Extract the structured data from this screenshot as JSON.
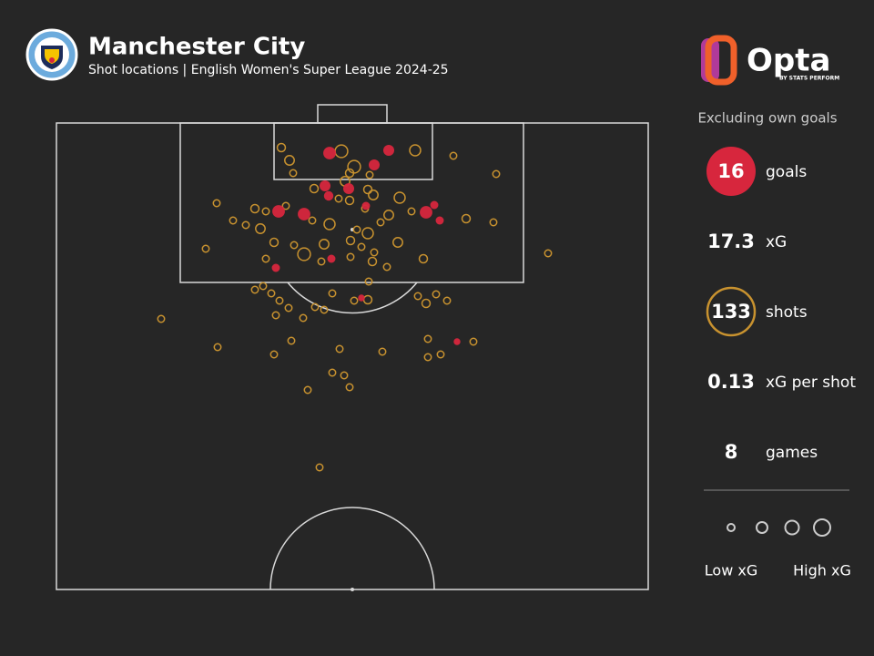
{
  "chart_data": {
    "type": "scatter",
    "title": "Manchester City",
    "subtitle": "Shot locations | English Women's Super League 2024-25",
    "brand": {
      "name": "Opta",
      "tagline": "BY STATS PERFORM"
    },
    "note": "Excluding own goals",
    "xlim": [
      0,
      650
    ],
    "ylim": [
      0,
      512
    ],
    "series": [
      {
        "name": "shots",
        "color": "#c8922f",
        "x": [
          247,
          313,
          394,
          256,
          327,
          322,
          260,
          344,
          436,
          483,
          317,
          283,
          342,
          348,
          377,
          322,
          310,
          176,
          218,
          230,
          252,
          339,
          365,
          390,
          450,
          480,
          194,
          224,
          208,
          281,
          300,
          330,
          342,
          356,
          239,
          272,
          294,
          323,
          335,
          349,
          375,
          164,
          230,
          261,
          403,
          323,
          347,
          363,
          291,
          540,
          218,
          227,
          236,
          245,
          303,
          327,
          342,
          343,
          397,
          406,
          417,
          429,
          284,
          294,
          255,
          241,
          115,
          271,
          408,
          458,
          177,
          258,
          311,
          358,
          239,
          408,
          422,
          303,
          316,
          322,
          276,
          289
        ],
        "values": [
          27,
          31,
          30,
          41,
          48,
          55,
          55,
          57,
          36,
          56,
          64,
          72,
          73,
          79,
          82,
          85,
          83,
          88,
          94,
          97,
          91,
          94,
          101,
          97,
          105,
          109,
          107,
          116,
          112,
          107,
          111,
          117,
          121,
          109,
          131,
          144,
          133,
          129,
          136,
          142,
          131,
          138,
          149,
          134,
          149,
          147,
          152,
          158,
          152,
          143,
          183,
          179,
          187,
          195,
          187,
          195,
          194,
          174,
          190,
          198,
          188,
          195,
          202,
          205,
          203,
          211,
          215,
          214,
          237,
          240,
          246,
          239,
          248,
          251,
          254,
          257,
          254,
          274,
          277,
          290,
          293,
          378
        ],
        "sizes": [
          0.08,
          0.4,
          0.25,
          0.15,
          0.4,
          0.08,
          0.03,
          0.03,
          0.03,
          0.03,
          0.15,
          0.08,
          0.08,
          0.15,
          0.25,
          0.08,
          0.03,
          0.03,
          0.08,
          0.03,
          0.03,
          0.03,
          0.15,
          0.03,
          0.08,
          0.03,
          0.03,
          0.15,
          0.03,
          0.03,
          0.25,
          0.03,
          0.25,
          0.03,
          0.08,
          0.4,
          0.15,
          0.08,
          0.03,
          0.03,
          0.15,
          0.03,
          0.03,
          0.03,
          0.08,
          0.03,
          0.08,
          0.03,
          0.03,
          0.03,
          0.03,
          0.03,
          0.03,
          0.03,
          0.03,
          0.03,
          0.08,
          0.03,
          0.03,
          0.08,
          0.03,
          0.03,
          0.03,
          0.03,
          0.03,
          0.03,
          0.03,
          0.03,
          0.03,
          0.03,
          0.03,
          0.03,
          0.03,
          0.03,
          0.03,
          0.03,
          0.03,
          0.03,
          0.03,
          0.03,
          0.03,
          0.03
        ]
      },
      {
        "name": "goals",
        "color": "#d7263d",
        "x": [
          300,
          365,
          349,
          295,
          299,
          321,
          244,
          272,
          406,
          415,
          421,
          340,
          241,
          302,
          335,
          440
        ],
        "values": [
          33,
          30,
          46,
          69,
          80,
          72,
          97,
          100,
          98,
          90,
          107,
          91,
          159,
          149,
          192,
          240
        ],
        "sizes": [
          0.4,
          0.25,
          0.25,
          0.25,
          0.15,
          0.25,
          0.4,
          0.4,
          0.4,
          0.08,
          0.08,
          0.08,
          0.08,
          0.08,
          0.03,
          0.03
        ]
      }
    ],
    "stats": [
      {
        "value": 16,
        "label": "goals"
      },
      {
        "value": 17.3,
        "label": "xG"
      },
      {
        "value": 133,
        "label": "shots"
      },
      {
        "value": 0.13,
        "label": "xG per shot"
      },
      {
        "value": 8,
        "label": "games"
      }
    ],
    "size_legend": {
      "low": "Low xG",
      "high": "High xG"
    }
  }
}
